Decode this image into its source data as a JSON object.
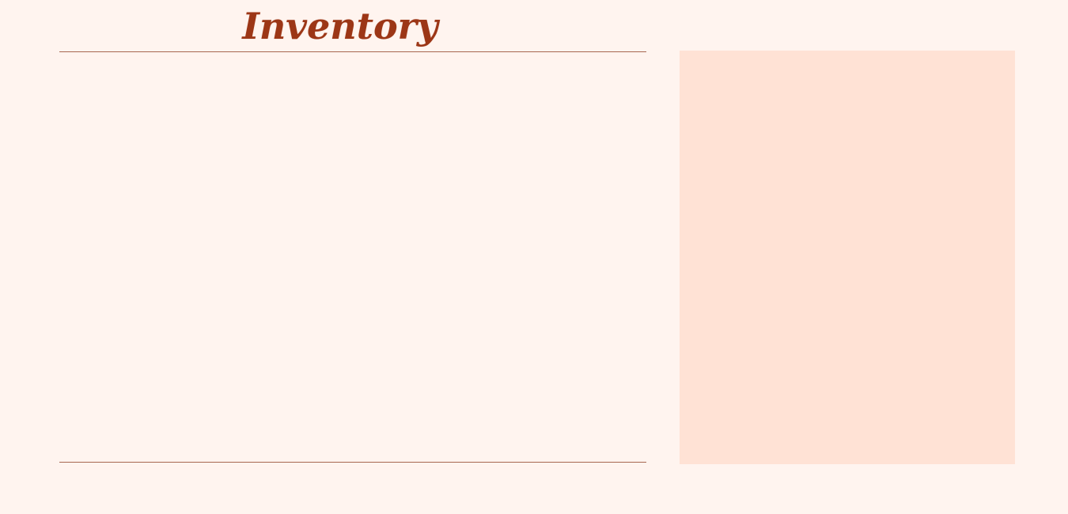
{
  "inventory": {
    "title": "Inventory",
    "items": []
  },
  "details": {},
  "colors": {
    "background": "#fff4ef",
    "title": "#9c3616",
    "divider": "#a66650",
    "details_panel": "#ffe2d5"
  }
}
